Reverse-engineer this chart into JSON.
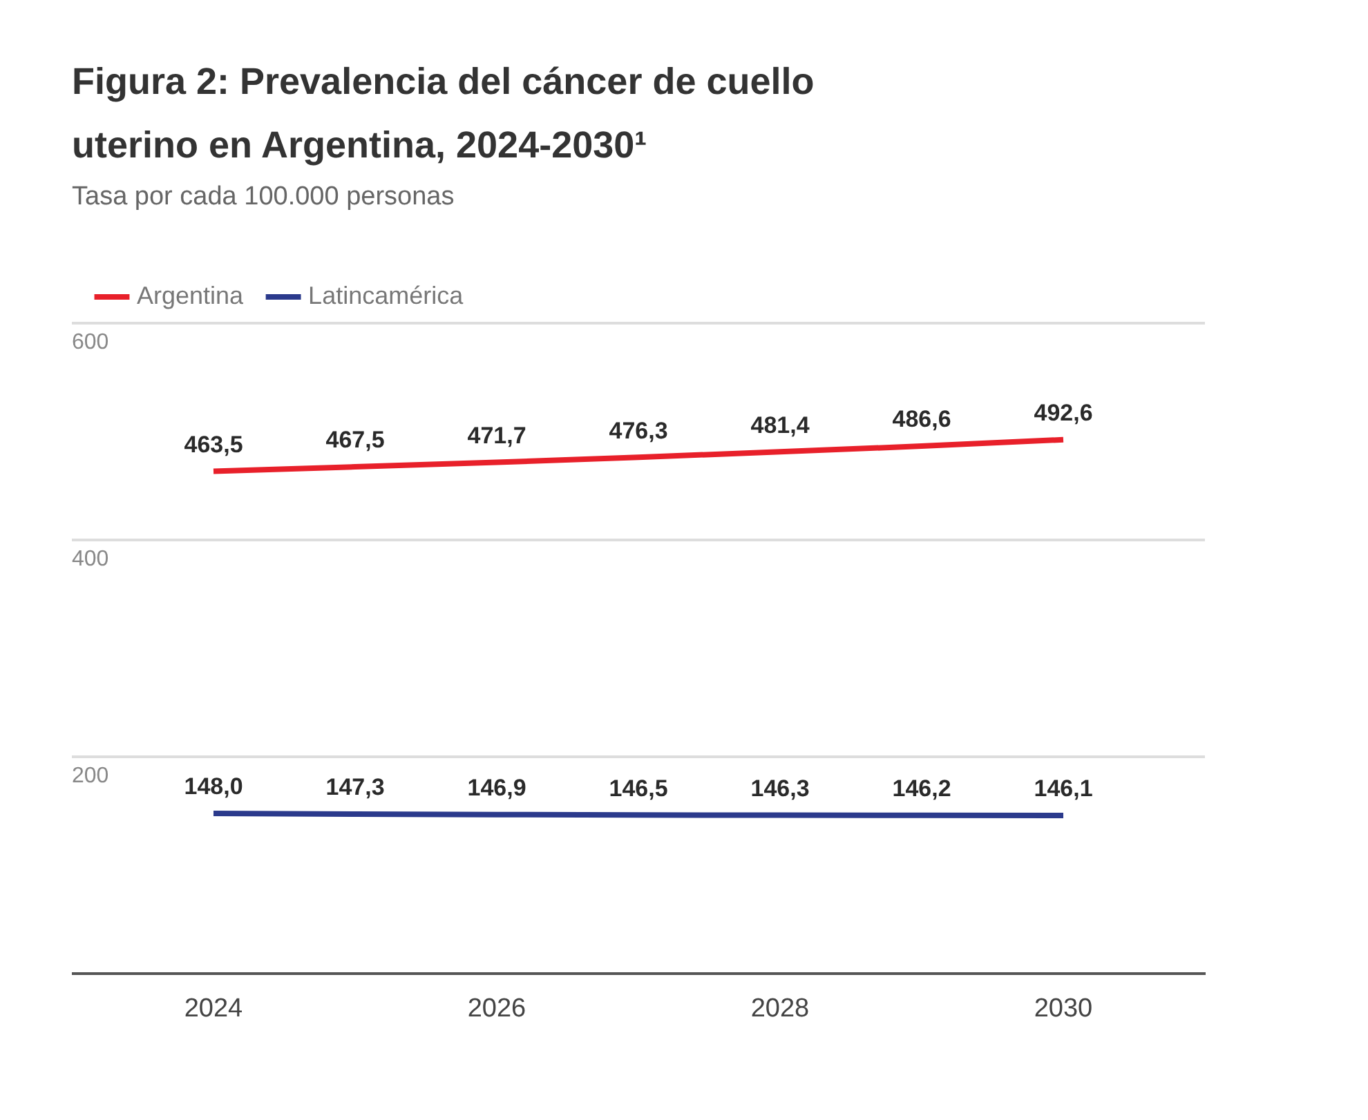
{
  "chart_data": {
    "type": "line",
    "title": "Figura 2: Prevalencia del cáncer de cuello uterino en Argentina, 2024-2030¹",
    "subtitle": "Tasa por cada 100.000 personas",
    "x": [
      2024,
      2025,
      2026,
      2027,
      2028,
      2029,
      2030
    ],
    "series": [
      {
        "name": "Argentina",
        "color": "#e8202a",
        "values": [
          463.5,
          467.5,
          471.7,
          476.3,
          481.4,
          486.6,
          492.6
        ],
        "value_labels": [
          "463,5",
          "467,5",
          "471,7",
          "476,3",
          "481,4",
          "486,6",
          "492,6"
        ]
      },
      {
        "name": "Latincamérica",
        "color": "#2b3a8c",
        "values": [
          148.0,
          147.3,
          146.9,
          146.5,
          146.3,
          146.2,
          146.1
        ],
        "value_labels": [
          "148,0",
          "147,3",
          "146,9",
          "146,5",
          "146,3",
          "146,2",
          "146,1"
        ]
      }
    ],
    "xlim": [
      2023,
      2031
    ],
    "xticks": [
      2024,
      2026,
      2028,
      2030
    ],
    "ylim": [
      0,
      600
    ],
    "yticks": [
      {
        "value": 0,
        "label": null
      },
      200,
      400,
      600
    ],
    "grid": "y",
    "legend": "top left",
    "marker": "none",
    "line_style": "solid"
  }
}
